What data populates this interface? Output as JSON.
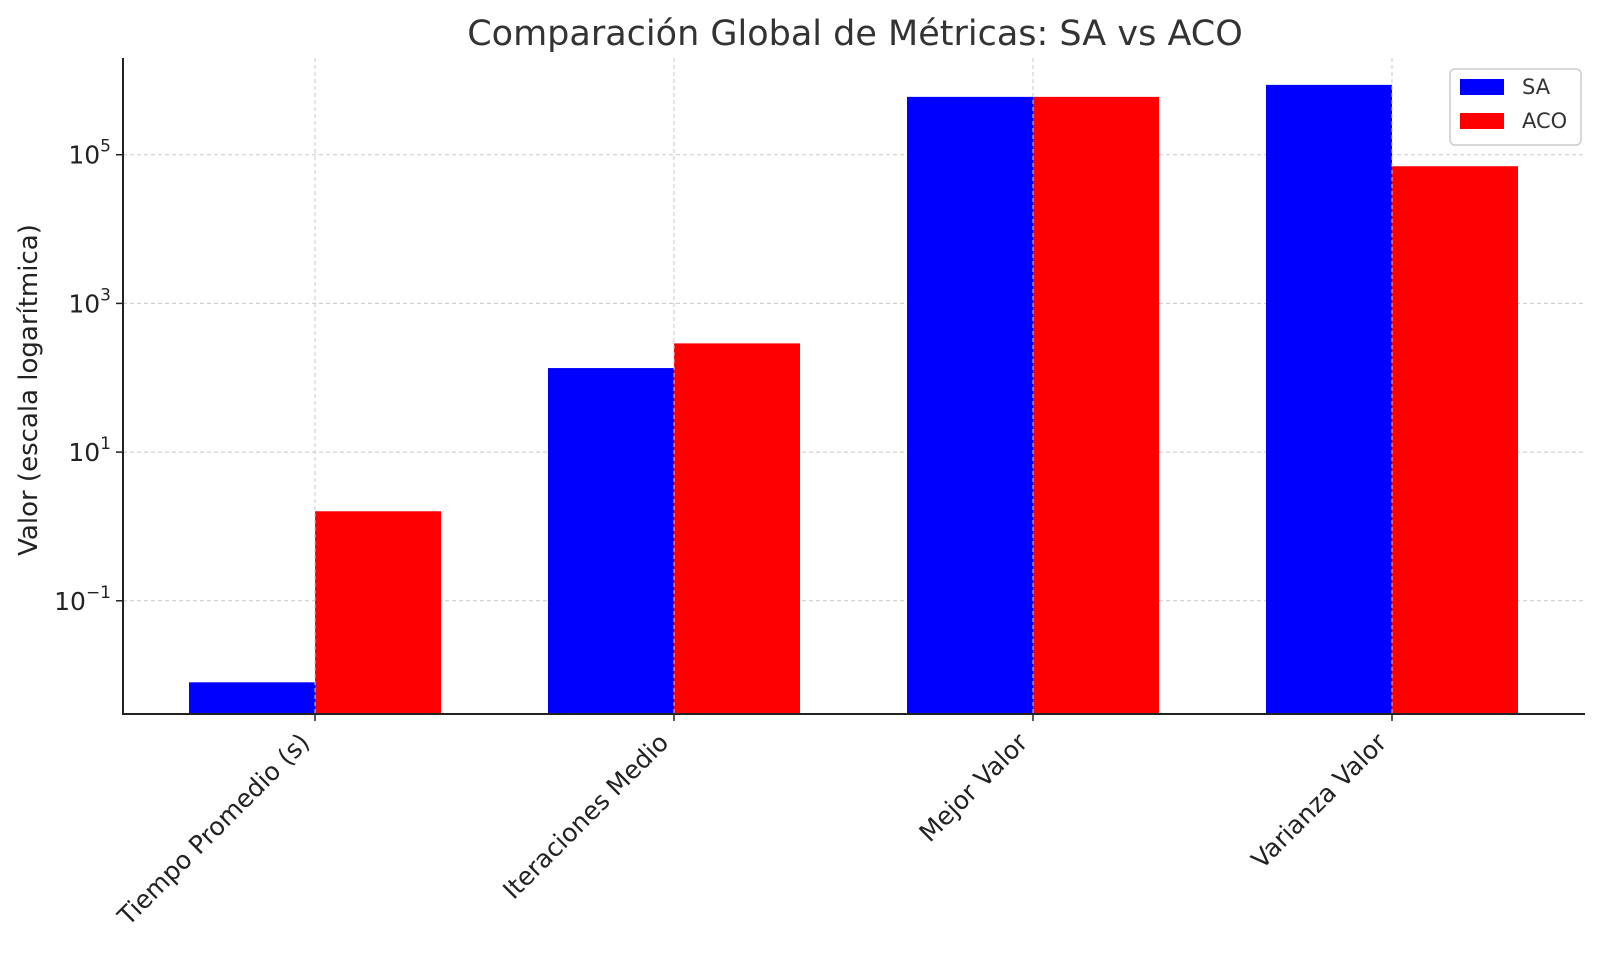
{
  "chart_data": {
    "type": "bar",
    "title": "Comparación Global de Métricas: SA vs ACO",
    "xlabel": "",
    "ylabel": "Valor (escala logarítmica)",
    "yscale": "log",
    "ylim": [
      0.003,
      2000000
    ],
    "yticks": [
      {
        "value": 0.1,
        "base": "10",
        "exp": "−1"
      },
      {
        "value": 10,
        "base": "10",
        "exp": "1"
      },
      {
        "value": 1000,
        "base": "10",
        "exp": "3"
      },
      {
        "value": 100000,
        "base": "10",
        "exp": "5"
      }
    ],
    "categories": [
      "Tiempo Promedio (s)",
      "Iteraciones Medio",
      "Mejor Valor",
      "Varianza Valor"
    ],
    "series": [
      {
        "name": "SA",
        "color": "#0000ff",
        "values": [
          0.008,
          135,
          600000,
          870000
        ]
      },
      {
        "name": "ACO",
        "color": "#ff0000",
        "values": [
          1.6,
          290,
          600000,
          70000
        ]
      }
    ],
    "grid": true,
    "legend_position": "top-right"
  }
}
